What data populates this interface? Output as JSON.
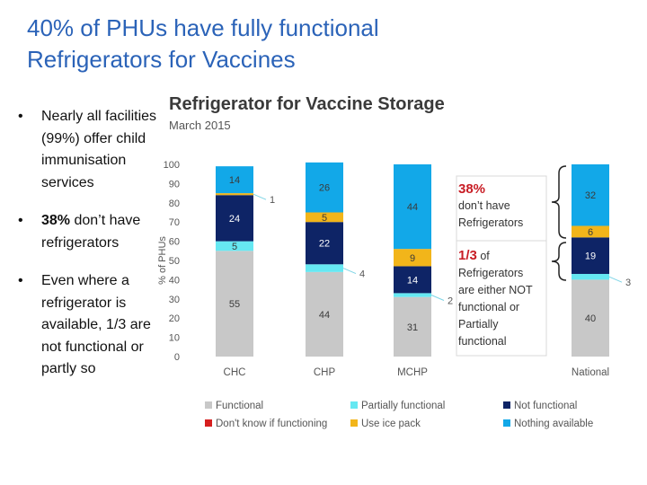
{
  "slide": {
    "title_line1": "40% of PHUs have fully functional",
    "title_line2": "Refrigerators for Vaccines",
    "bullet_glyph": "•",
    "bullets": [
      {
        "text": "Nearly all facilities (99%) offer child immunisation services"
      },
      {
        "bold": "38%",
        "rest": " don’t have refrigerators"
      },
      {
        "text": "Even where a refrigerator is available, 1/3 are not functional or partly so"
      }
    ]
  },
  "colors": {
    "title": "#2b63b8",
    "functional": "#c8c8c8",
    "partially_functional": "#66e8f2",
    "not_functional": "#0e2466",
    "dont_know": "#d61f1f",
    "ice_pack": "#f2b51a",
    "nothing_available": "#12a8e8",
    "accent_red": "#c81d25"
  },
  "callouts": {
    "top_pct": "38%",
    "top_text_1": "don’t have",
    "top_text_2": "Refrigerators",
    "bottom_frac": "1/3",
    "bottom_of": " of",
    "bottom_text_1": "Refrigerators",
    "bottom_text_2": "are either NOT",
    "bottom_text_3": "functional or",
    "bottom_text_4": "Partially",
    "bottom_text_5": "functional"
  },
  "chart_data": {
    "type": "bar",
    "stacked": true,
    "title": "Refrigerator for Vaccine Storage",
    "subtitle": "March 2015",
    "xlabel": "",
    "ylabel": "% of PHUs",
    "ylim": [
      0,
      100
    ],
    "yticks": [
      0,
      10,
      20,
      30,
      40,
      50,
      60,
      70,
      80,
      90,
      100
    ],
    "categories": [
      "CHC",
      "CHP",
      "MCHP",
      "National"
    ],
    "series": [
      {
        "name": "Functional",
        "key": "functional",
        "values": [
          55,
          44,
          31,
          40
        ]
      },
      {
        "name": "Partially functional",
        "key": "partially_functional",
        "values": [
          5,
          4,
          2,
          3
        ]
      },
      {
        "name": "Not functional",
        "key": "not_functional",
        "values": [
          24,
          22,
          14,
          19
        ]
      },
      {
        "name": "Don't know if functioning",
        "key": "dont_know",
        "values": [
          0,
          0,
          0,
          0
        ]
      },
      {
        "name": "Use ice pack",
        "key": "ice_pack",
        "values": [
          1,
          5,
          9,
          6
        ]
      },
      {
        "name": "Nothing available",
        "key": "nothing_available",
        "values": [
          14,
          26,
          44,
          32
        ]
      }
    ],
    "data_labels": [
      {
        "cat": 0,
        "series": 0,
        "text": "55"
      },
      {
        "cat": 0,
        "series": 1,
        "text": "5"
      },
      {
        "cat": 0,
        "series": 2,
        "text": "24"
      },
      {
        "cat": 0,
        "series": 4,
        "text": "1",
        "outside": true
      },
      {
        "cat": 0,
        "series": 5,
        "text": "14"
      },
      {
        "cat": 1,
        "series": 0,
        "text": "44"
      },
      {
        "cat": 1,
        "series": 1,
        "text": "4",
        "outside": true
      },
      {
        "cat": 1,
        "series": 2,
        "text": "22"
      },
      {
        "cat": 1,
        "series": 4,
        "text": "5"
      },
      {
        "cat": 1,
        "series": 5,
        "text": "26"
      },
      {
        "cat": 2,
        "series": 0,
        "text": "31"
      },
      {
        "cat": 2,
        "series": 1,
        "text": "2",
        "outside": true
      },
      {
        "cat": 2,
        "series": 2,
        "text": "14"
      },
      {
        "cat": 2,
        "series": 4,
        "text": "9"
      },
      {
        "cat": 2,
        "series": 5,
        "text": "44"
      },
      {
        "cat": 3,
        "series": 0,
        "text": "40"
      },
      {
        "cat": 3,
        "series": 1,
        "text": "3",
        "outside": true
      },
      {
        "cat": 3,
        "series": 2,
        "text": "19"
      },
      {
        "cat": 3,
        "series": 4,
        "text": "6"
      },
      {
        "cat": 3,
        "series": 5,
        "text": "32"
      }
    ],
    "legend_position": "bottom",
    "legend_order": [
      "Functional",
      "Partially functional",
      "Not functional",
      "Don't know if functioning",
      "Use ice pack",
      "Nothing available"
    ]
  }
}
